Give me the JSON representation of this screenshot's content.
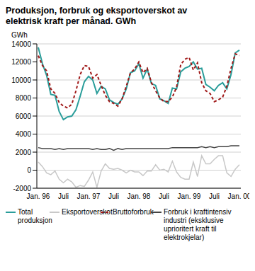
{
  "chart_data": {
    "type": "line",
    "title": "Produksjon, forbruk og eksportoverskot av elektrisk kraft per månad. GWh",
    "y_label": "GWh",
    "categories": [
      "Jan. 96",
      null,
      null,
      null,
      null,
      null,
      "Juli",
      null,
      null,
      null,
      null,
      null,
      "Jan. 97",
      null,
      null,
      null,
      null,
      null,
      "Juli",
      null,
      null,
      null,
      null,
      null,
      "Jan. 98",
      null,
      null,
      null,
      null,
      null,
      "Juli",
      null,
      null,
      null,
      null,
      null,
      "Jan. 99",
      null,
      null,
      null,
      null,
      null,
      "Juli",
      null,
      null,
      null,
      null,
      null,
      "Jan. 00"
    ],
    "ylim": [
      -2000,
      14000
    ],
    "yticks": [
      -2000,
      0,
      2000,
      4000,
      6000,
      8000,
      10000,
      12000,
      14000
    ],
    "grid": true,
    "series": [
      {
        "name": "Total produksjon",
        "color": "#2a9d9a",
        "line_style": "solid",
        "values": [
          13600,
          11800,
          10500,
          8400,
          8300,
          6500,
          5600,
          5900,
          6000,
          6700,
          8200,
          9800,
          10400,
          10000,
          8500,
          9300,
          9000,
          7800,
          7500,
          7300,
          7900,
          9000,
          10800,
          11000,
          11800,
          10200,
          11200,
          9600,
          9400,
          7900,
          7700,
          7400,
          9100,
          9000,
          10900,
          11300,
          11500,
          12000,
          11200,
          11300,
          9500,
          9200,
          8800,
          9400,
          9700,
          9000,
          10600,
          13000,
          13300
        ]
      },
      {
        "name": "Eksportoverskot",
        "color": "#c8c8c8",
        "line_style": "solid",
        "values": [
          900,
          400,
          -300,
          -500,
          -100,
          -1000,
          -1400,
          -1000,
          -1300,
          -1900,
          -1700,
          -1800,
          -1100,
          -200,
          -1900,
          -100,
          700,
          200,
          100,
          200,
          0,
          -300,
          0,
          -200,
          -200,
          -600,
          -100,
          -100,
          600,
          0,
          100,
          -200,
          1000,
          -200,
          -800,
          -1000,
          -1000,
          900,
          -700,
          1600,
          700,
          700,
          1200,
          1600,
          1600,
          -300,
          -700,
          100,
          600
        ]
      },
      {
        "name": "Bruttoforbruk",
        "color": "#a01818",
        "line_style": "dashed",
        "values": [
          12700,
          11600,
          11000,
          9000,
          8500,
          7500,
          7100,
          6900,
          7300,
          8800,
          10600,
          11600,
          11500,
          10200,
          10600,
          9400,
          8300,
          7600,
          7400,
          7100,
          7900,
          9300,
          10800,
          11200,
          12000,
          10800,
          11300,
          9700,
          8800,
          8000,
          7600,
          7600,
          8100,
          9200,
          11700,
          12300,
          12500,
          11100,
          11900,
          9700,
          8800,
          8500,
          7600,
          7800,
          8100,
          9300,
          11300,
          12900,
          12700
        ]
      },
      {
        "name": "Forbruk i kraftintensiv industri (eksklusive uprioritert kraft til elektrokjelar)",
        "color": "#444444",
        "line_style": "solid",
        "values": [
          2500,
          2400,
          2400,
          2400,
          2300,
          2400,
          2300,
          2400,
          2400,
          2400,
          2400,
          2400,
          2400,
          2300,
          2400,
          2300,
          2300,
          2400,
          2200,
          2400,
          2300,
          2400,
          2400,
          2400,
          2400,
          2400,
          2400,
          2400,
          2400,
          2400,
          2400,
          2400,
          2500,
          2500,
          2500,
          2500,
          2500,
          2500,
          2500,
          2600,
          2500,
          2600,
          2500,
          2600,
          2600,
          2600,
          2700,
          2700,
          2700
        ]
      }
    ]
  }
}
